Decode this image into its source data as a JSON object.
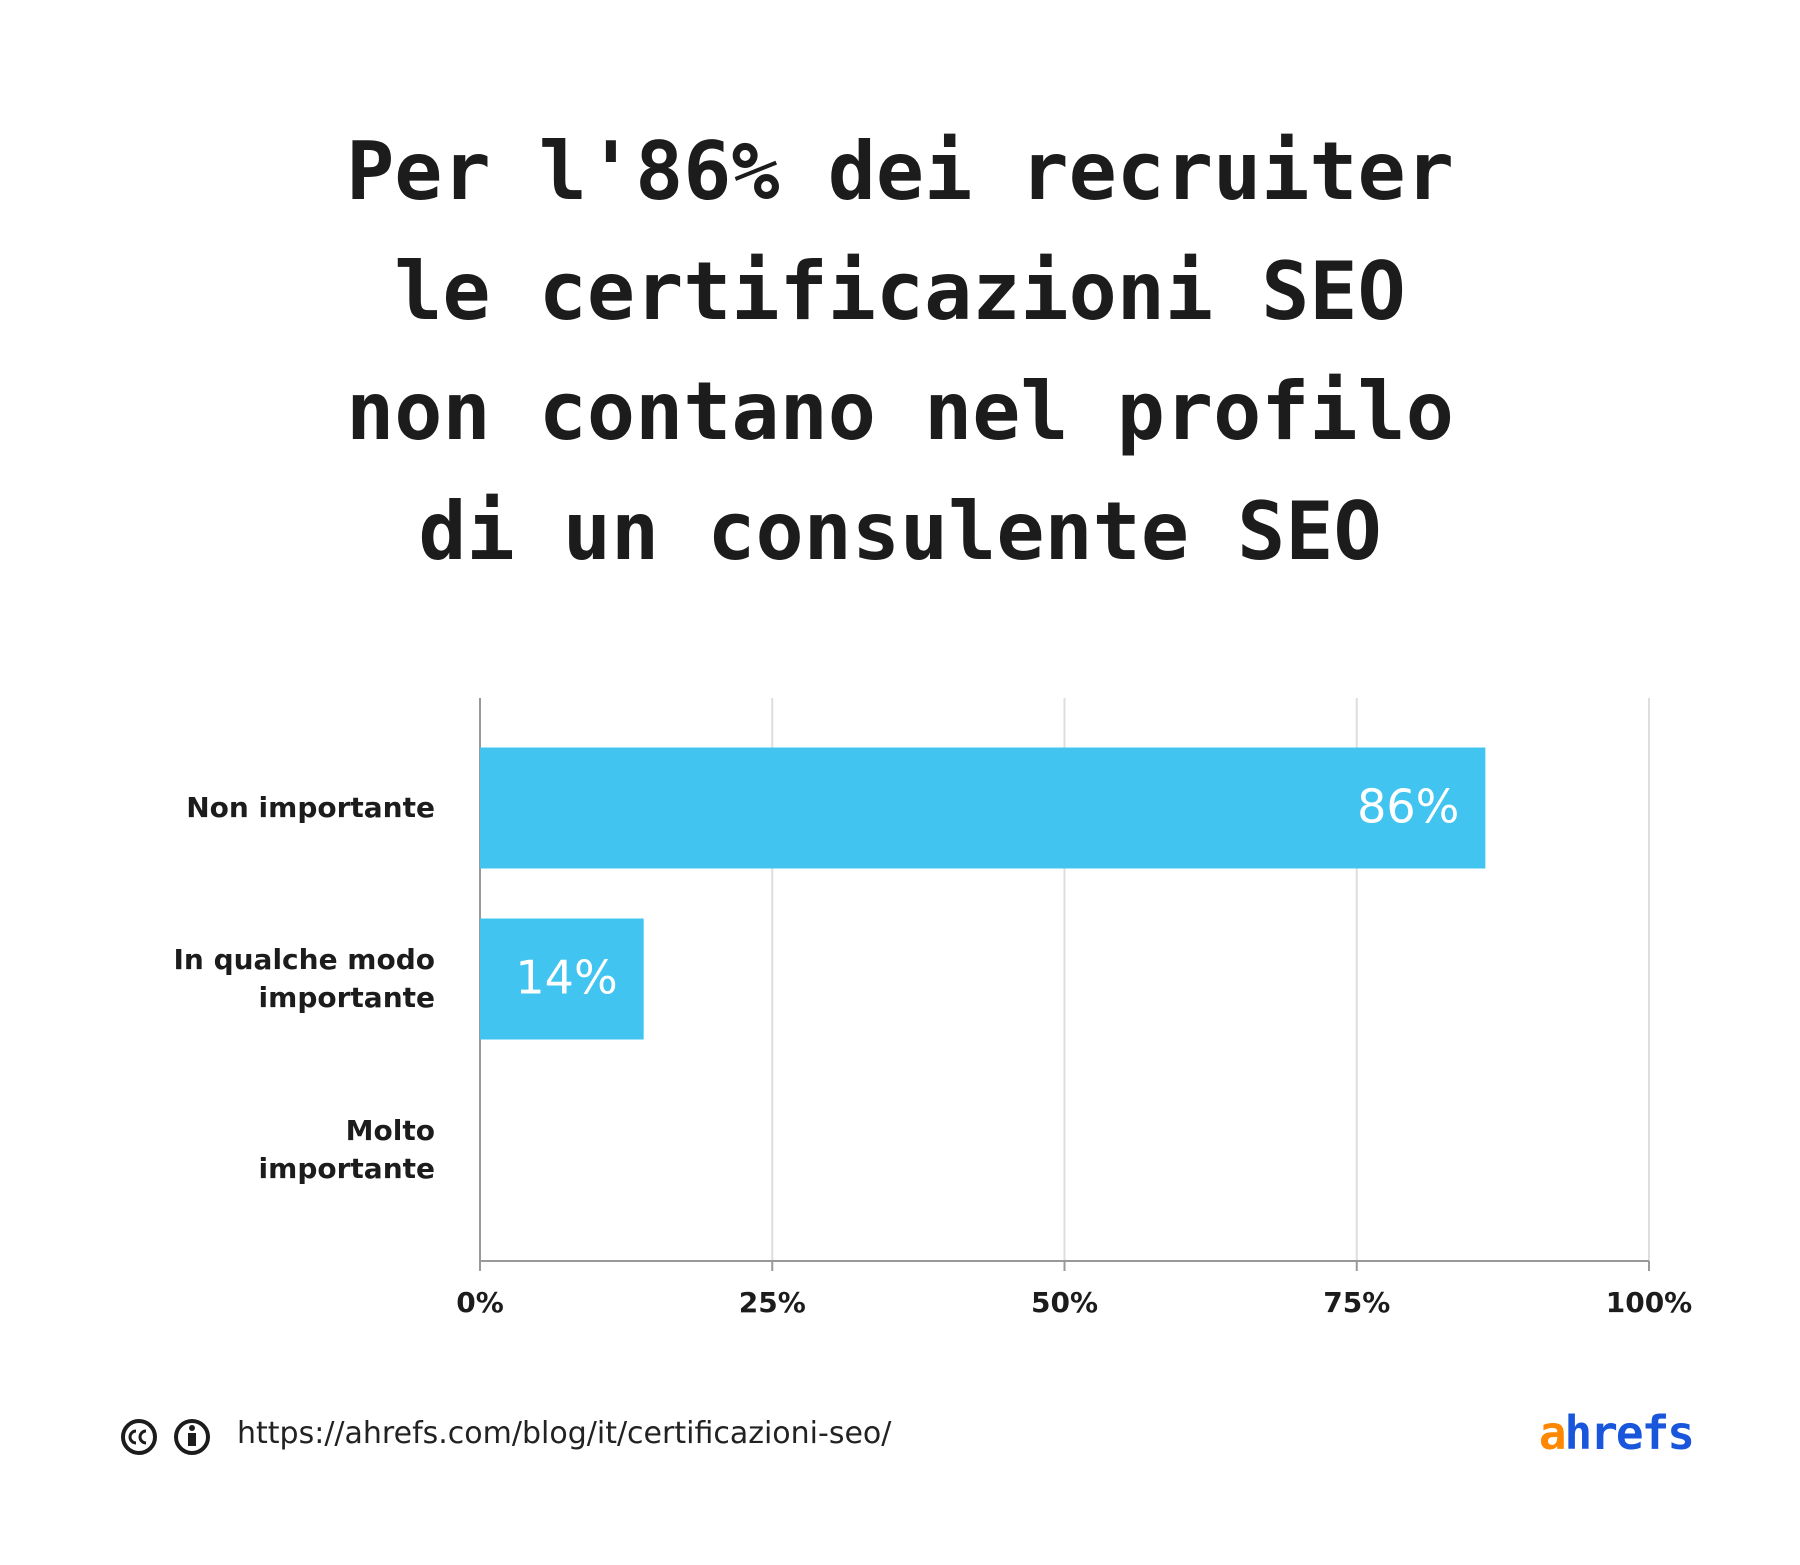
{
  "chart_data": {
    "type": "barh",
    "title": "Per l'86% dei recruiter\nle certificazioni SEO\nnon contano nel profilo\ndi un consulente SEO",
    "categories": [
      "Non importante",
      "In qualche modo importante",
      "Molto importante"
    ],
    "values": [
      86,
      14,
      0
    ],
    "value_labels": [
      "86%",
      "14%",
      null
    ],
    "color": "#41c5f0",
    "xlim": [
      0,
      100
    ],
    "xticks": [
      {
        "value": 0,
        "label": "0%"
      },
      {
        "value": 25,
        "label": "25%"
      },
      {
        "value": 50,
        "label": "50%"
      },
      {
        "value": 75,
        "label": "75%"
      },
      {
        "value": 100,
        "label": "100%"
      }
    ],
    "grid": true,
    "source": "https://ahrefs.com/blog/it/certificazioni-seo/",
    "logo": "ahrefs"
  }
}
